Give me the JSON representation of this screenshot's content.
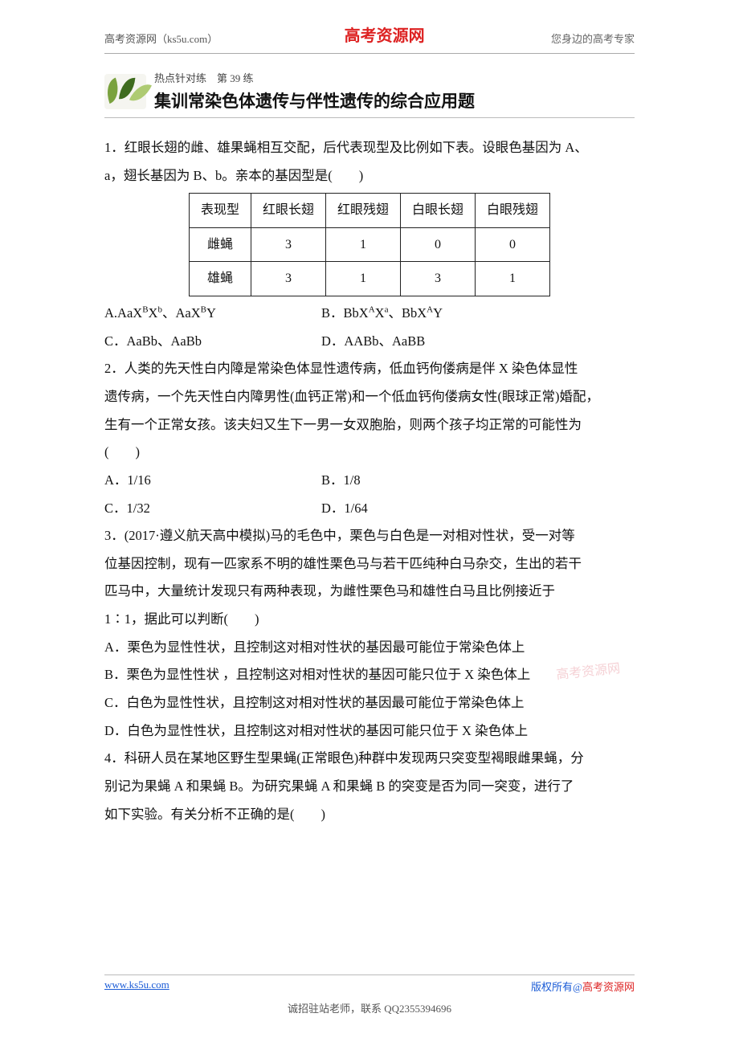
{
  "header": {
    "left": "高考资源网（ks5u.com）",
    "center": "高考资源网",
    "right": "您身边的高考专家"
  },
  "banner": {
    "kicker": "热点针对练　第 39 练",
    "title": "集训常染色体遗传与伴性遗传的综合应用题"
  },
  "q1": {
    "line1": "1．红眼长翅的雌、雄果蝇相互交配，后代表现型及比例如下表。设眼色基因为 A、",
    "line2": "a，翅长基因为 B、b。亲本的基因型是(　　)",
    "table": {
      "cols": [
        "表现型",
        "红眼长翅",
        "红眼残翅",
        "白眼长翅",
        "白眼残翅"
      ],
      "rows": [
        [
          "雌蝇",
          "3",
          "1",
          "0",
          "0"
        ],
        [
          "雄蝇",
          "3",
          "1",
          "3",
          "1"
        ]
      ]
    },
    "optA_l": "A.AaX",
    "optA_sup1": "B",
    "optA_mid": "X",
    "optA_sup2": "b",
    "optA_sep": "、AaX",
    "optA_sup3": "B",
    "optA_end": "Y",
    "optB_l": "B．BbX",
    "optB_sup1": "A",
    "optB_mid": "X",
    "optB_sup2": "a",
    "optB_sep": "、BbX",
    "optB_sup3": "A",
    "optB_end": "Y",
    "optC": "C．AaBb、AaBb",
    "optD": "D．AABb、AaBB"
  },
  "q2": {
    "l1": "2．人类的先天性白内障是常染色体显性遗传病，低血钙佝偻病是伴 X 染色体显性",
    "l2": "遗传病，一个先天性白内障男性(血钙正常)和一个低血钙佝偻病女性(眼球正常)婚配，",
    "l3": "生有一个正常女孩。该夫妇又生下一男一女双胞胎，则两个孩子均正常的可能性为",
    "l4": "(　　)",
    "a": "A．1/16",
    "b": "B．1/8",
    "c": "C．1/32",
    "d": "D．1/64"
  },
  "q3": {
    "l1": "3．(2017·遵义航天高中模拟)马的毛色中，栗色与白色是一对相对性状，受一对等",
    "l2": "位基因控制，现有一匹家系不明的雄性栗色马与若干匹纯种白马杂交，生出的若干",
    "l3": "匹马中，大量统计发现只有两种表现，为雌性栗色马和雄性白马且比例接近于",
    "l4": "1∶1，据此可以判断(　　)",
    "a": "A．栗色为显性性状，且控制这对相对性状的基因最可能位于常染色体上",
    "b": "B．栗色为显性性状 ，且控制这对相对性状的基因可能只位于 X 染色体上",
    "c": "C．白色为显性性状，且控制这对相对性状的基因最可能位于常染色体上",
    "d": "D．白色为显性性状，且控制这对相对性状的基因可能只位于 X 染色体上"
  },
  "q4": {
    "l1": "4．科研人员在某地区野生型果蝇(正常眼色)种群中发现两只突变型褐眼雌果蝇，分",
    "l2": "别记为果蝇 A 和果蝇 B。为研究果蝇 A 和果蝇 B 的突变是否为同一突变，进行了",
    "l3": "如下实验。有关分析不正确的是(　　)"
  },
  "watermark": "高考资源网",
  "footer": {
    "url": "www.ks5u.com",
    "copy_pre": "版权所有@",
    "copy_org": "高考资源网",
    "contact": "诚招驻站老师，联系 QQ2355394696"
  },
  "style": {
    "page_bg": "#ffffff",
    "text_color": "#111111",
    "header_center_color": "#dd2222",
    "link_color": "#1a5bd6",
    "border_color": "#222222",
    "body_fontsize": 16.5,
    "line_height": 2.1
  }
}
